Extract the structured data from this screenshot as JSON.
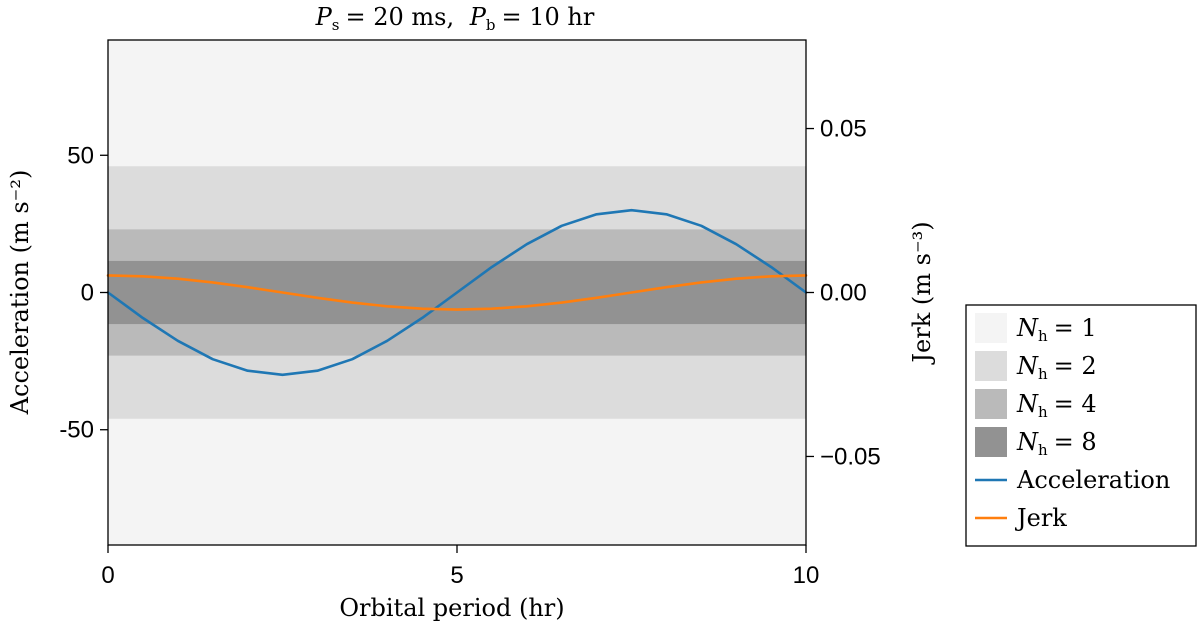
{
  "chart_data": {
    "type": "line",
    "title": "P_s = 20 ms,  P_b = 10 hr",
    "title_parts": {
      "ps_symbol": "P",
      "ps_sub": "s",
      "ps_value": "= 20 ms,",
      "pb_symbol": "P",
      "pb_sub": "b",
      "pb_value": "= 10 hr"
    },
    "xlabel": "Orbital period (hr)",
    "ylabel_left": "Acceleration (m s⁻²)",
    "ylabel_right": "Jerk (m s⁻³)",
    "xlim": [
      0,
      10
    ],
    "ylim_left": [
      -92,
      92
    ],
    "ylim_right": [
      -0.077,
      0.077
    ],
    "x_ticks": [
      {
        "value": 0,
        "label": "0"
      },
      {
        "value": 5,
        "label": "5"
      },
      {
        "value": 10,
        "label": "10"
      }
    ],
    "y_ticks_left": [
      {
        "value": 50,
        "label": "50"
      },
      {
        "value": 0,
        "label": "0"
      },
      {
        "value": -50,
        "label": "-50"
      }
    ],
    "y_ticks_right": [
      {
        "value": 0.05,
        "label": "0.05"
      },
      {
        "value": 0.0,
        "label": "0.00"
      },
      {
        "value": -0.05,
        "label": "−0.05"
      }
    ],
    "bands": [
      {
        "name": "N_h = 1",
        "harmonics": 1,
        "lower": -92,
        "upper": 92,
        "color": "#f4f4f4"
      },
      {
        "name": "N_h = 2",
        "harmonics": 2,
        "lower": -46,
        "upper": 46,
        "color": "#dcdcdc"
      },
      {
        "name": "N_h = 4",
        "harmonics": 4,
        "lower": -23,
        "upper": 23,
        "color": "#bababa"
      },
      {
        "name": "N_h = 8",
        "harmonics": 8,
        "lower": -11.5,
        "upper": 11.5,
        "color": "#929292"
      }
    ],
    "series": [
      {
        "name": "Acceleration",
        "axis": "left",
        "color": "#1f77b4",
        "x": [
          0,
          0.5,
          1,
          1.5,
          2,
          2.5,
          3,
          3.5,
          4,
          4.5,
          5,
          5.5,
          6,
          6.5,
          7,
          7.5,
          8,
          8.5,
          9,
          9.5,
          10
        ],
        "values": [
          0,
          -9.3,
          -17.6,
          -24.3,
          -28.5,
          -30.0,
          -28.5,
          -24.3,
          -17.6,
          -9.3,
          0,
          9.3,
          17.6,
          24.3,
          28.5,
          30.0,
          28.5,
          24.3,
          17.6,
          9.3,
          0
        ]
      },
      {
        "name": "Jerk",
        "axis": "right",
        "color": "#ff7f0e",
        "x": [
          0,
          0.5,
          1,
          1.5,
          2,
          2.5,
          3,
          3.5,
          4,
          4.5,
          5,
          5.5,
          6,
          6.5,
          7,
          7.5,
          8,
          8.5,
          9,
          9.5,
          10
        ],
        "values": [
          0.0052,
          0.00495,
          0.00421,
          0.00306,
          0.00161,
          0,
          -0.00161,
          -0.00306,
          -0.00421,
          -0.00495,
          -0.0052,
          -0.00495,
          -0.00421,
          -0.00306,
          -0.00161,
          0,
          0.00161,
          0.00306,
          0.00421,
          0.00495,
          0.0052
        ]
      }
    ],
    "legend": {
      "position": "right",
      "entries": [
        {
          "kind": "patch",
          "symbol": "N",
          "sub": "h",
          "eq": "= 1",
          "color": "#f4f4f4"
        },
        {
          "kind": "patch",
          "symbol": "N",
          "sub": "h",
          "eq": "= 2",
          "color": "#dcdcdc"
        },
        {
          "kind": "patch",
          "symbol": "N",
          "sub": "h",
          "eq": "= 4",
          "color": "#bababa"
        },
        {
          "kind": "patch",
          "symbol": "N",
          "sub": "h",
          "eq": "= 8",
          "color": "#929292"
        },
        {
          "kind": "line",
          "label": "Acceleration",
          "color": "#1f77b4"
        },
        {
          "kind": "line",
          "label": "Jerk",
          "color": "#ff7f0e"
        }
      ]
    }
  }
}
